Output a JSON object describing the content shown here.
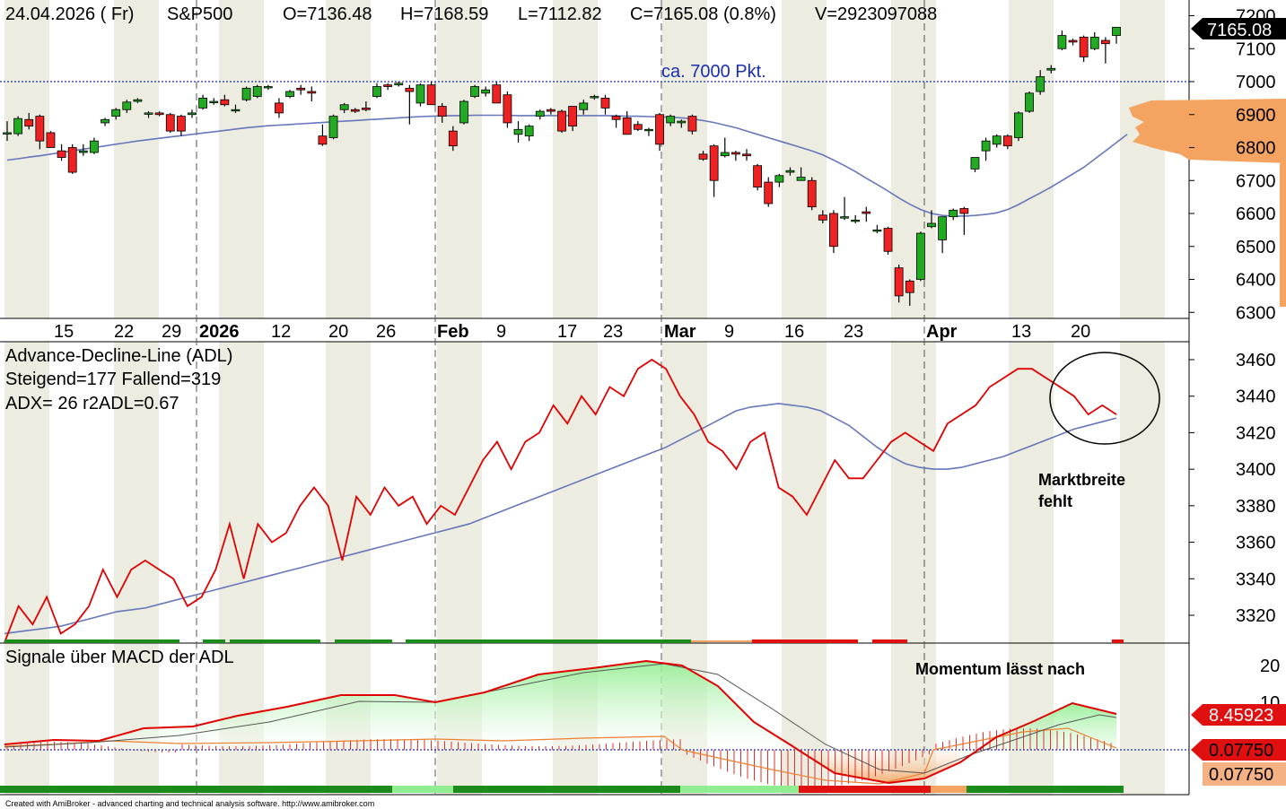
{
  "header": {
    "date": "24.04.2026 ( Fr)",
    "symbol": "S&P500",
    "open": "O=7136.48",
    "high": "H=7168.59",
    "low": "L=7112.82",
    "close": "C=7165.08 (0.8%)",
    "volume": "V=2923097088"
  },
  "price_panel": {
    "annotation": "ca. 7000 Pkt.",
    "last_price": "7165.08",
    "y_ticks": [
      "7200",
      "7100",
      "7000",
      "6900",
      "6800",
      "6700",
      "6600",
      "6500",
      "6400",
      "6300"
    ],
    "x_labels": [
      "15",
      "22",
      "29",
      "2026",
      "12",
      "20",
      "26",
      "Feb",
      "9",
      "17",
      "23",
      "Mar",
      "9",
      "16",
      "23",
      "Apr",
      "13",
      "20"
    ]
  },
  "adl_panel": {
    "title": "Advance-Decline-Line (ADL)",
    "line2": "Steigend=177  Fallend=319",
    "line3": "ADX= 26  r2ADL=0.67",
    "note_line1": "Marktbreite",
    "note_line2": "fehlt",
    "y_ticks": [
      "3460",
      "3440",
      "3420",
      "3400",
      "3380",
      "3360",
      "3340",
      "3320"
    ]
  },
  "macd_panel": {
    "title": "Signale über MACD der ADL",
    "note": "Momentum lässt nach",
    "y_tick_top": "20",
    "y_tick_partial": "10",
    "value1": "8.45923",
    "value2": "0.07750",
    "value3": "0.07750"
  },
  "footer": {
    "credit": "Created with AmiBroker - advanced charting and technical analysis software. http://www.amibroker.com"
  },
  "colors": {
    "up": "#22aa22",
    "down": "#ee2222",
    "adl_line": "#e00000",
    "ma_line": "#6677bb",
    "profile": "#f4a460",
    "signal_green": "#1b8c1b",
    "signal_red": "#e01010"
  },
  "chart_data": {
    "type": "candlestick",
    "series_labels": [
      "S&P500"
    ],
    "y_range": [
      6270,
      7235
    ],
    "candles": [
      {
        "o": 6842,
        "h": 6880,
        "l": 6820,
        "c": 6845
      },
      {
        "o": 6842,
        "h": 6895,
        "l": 6835,
        "c": 6888
      },
      {
        "o": 6885,
        "h": 6905,
        "l": 6855,
        "c": 6865
      },
      {
        "o": 6895,
        "h": 6900,
        "l": 6795,
        "c": 6820
      },
      {
        "o": 6845,
        "h": 6850,
        "l": 6800,
        "c": 6800
      },
      {
        "o": 6790,
        "h": 6810,
        "l": 6760,
        "c": 6770
      },
      {
        "o": 6800,
        "h": 6810,
        "l": 6720,
        "c": 6725
      },
      {
        "o": 6785,
        "h": 6810,
        "l": 6775,
        "c": 6790
      },
      {
        "o": 6785,
        "h": 6830,
        "l": 6780,
        "c": 6820
      },
      {
        "o": 6875,
        "h": 6890,
        "l": 6865,
        "c": 6885
      },
      {
        "o": 6895,
        "h": 6920,
        "l": 6885,
        "c": 6915
      },
      {
        "o": 6915,
        "h": 6945,
        "l": 6905,
        "c": 6938
      },
      {
        "o": 6940,
        "h": 6950,
        "l": 6935,
        "c": 6945
      },
      {
        "o": 6905,
        "h": 6910,
        "l": 6890,
        "c": 6905
      },
      {
        "o": 6905,
        "h": 6910,
        "l": 6895,
        "c": 6900
      },
      {
        "o": 6900,
        "h": 6905,
        "l": 6845,
        "c": 6850
      },
      {
        "o": 6895,
        "h": 6900,
        "l": 6835,
        "c": 6850
      },
      {
        "o": 6900,
        "h": 6915,
        "l": 6890,
        "c": 6905
      },
      {
        "o": 6920,
        "h": 6960,
        "l": 6915,
        "c": 6950
      },
      {
        "o": 6940,
        "h": 6950,
        "l": 6930,
        "c": 6940
      },
      {
        "o": 6945,
        "h": 6960,
        "l": 6925,
        "c": 6930
      },
      {
        "o": 6915,
        "h": 6930,
        "l": 6905,
        "c": 6915
      },
      {
        "o": 6945,
        "h": 6985,
        "l": 6940,
        "c": 6980
      },
      {
        "o": 6955,
        "h": 6990,
        "l": 6950,
        "c": 6985
      },
      {
        "o": 6985,
        "h": 6990,
        "l": 6975,
        "c": 6985
      },
      {
        "o": 6935,
        "h": 6950,
        "l": 6890,
        "c": 6905
      },
      {
        "o": 6955,
        "h": 6975,
        "l": 6950,
        "c": 6970
      },
      {
        "o": 6980,
        "h": 6990,
        "l": 6960,
        "c": 6975
      },
      {
        "o": 6970,
        "h": 6985,
        "l": 6940,
        "c": 6965
      },
      {
        "o": 6835,
        "h": 6870,
        "l": 6805,
        "c": 6810
      },
      {
        "o": 6830,
        "h": 6900,
        "l": 6825,
        "c": 6895
      },
      {
        "o": 6915,
        "h": 6935,
        "l": 6905,
        "c": 6930
      },
      {
        "o": 6915,
        "h": 6920,
        "l": 6905,
        "c": 6910
      },
      {
        "o": 6920,
        "h": 6940,
        "l": 6910,
        "c": 6915
      },
      {
        "o": 6955,
        "h": 6995,
        "l": 6950,
        "c": 6985
      },
      {
        "o": 6990,
        "h": 6995,
        "l": 6975,
        "c": 6985
      },
      {
        "o": 6990,
        "h": 7000,
        "l": 6985,
        "c": 6995
      },
      {
        "o": 6980,
        "h": 6990,
        "l": 6870,
        "c": 6970
      },
      {
        "o": 6935,
        "h": 6995,
        "l": 6925,
        "c": 6990
      },
      {
        "o": 6990,
        "h": 7000,
        "l": 6930,
        "c": 6930
      },
      {
        "o": 6925,
        "h": 6935,
        "l": 6875,
        "c": 6895
      },
      {
        "o": 6850,
        "h": 6865,
        "l": 6790,
        "c": 6805
      },
      {
        "o": 6875,
        "h": 6945,
        "l": 6870,
        "c": 6940
      },
      {
        "o": 6955,
        "h": 6990,
        "l": 6950,
        "c": 6985
      },
      {
        "o": 6965,
        "h": 6985,
        "l": 6955,
        "c": 6975
      },
      {
        "o": 6990,
        "h": 7000,
        "l": 6935,
        "c": 6935
      },
      {
        "o": 6960,
        "h": 6970,
        "l": 6860,
        "c": 6875
      },
      {
        "o": 6840,
        "h": 6880,
        "l": 6815,
        "c": 6855
      },
      {
        "o": 6835,
        "h": 6870,
        "l": 6820,
        "c": 6865
      },
      {
        "o": 6895,
        "h": 6915,
        "l": 6885,
        "c": 6910
      },
      {
        "o": 6915,
        "h": 6920,
        "l": 6900,
        "c": 6910
      },
      {
        "o": 6910,
        "h": 6915,
        "l": 6845,
        "c": 6850
      },
      {
        "o": 6925,
        "h": 6925,
        "l": 6850,
        "c": 6865
      },
      {
        "o": 6915,
        "h": 6945,
        "l": 6900,
        "c": 6935
      },
      {
        "o": 6955,
        "h": 6960,
        "l": 6945,
        "c": 6955
      },
      {
        "o": 6950,
        "h": 6960,
        "l": 6900,
        "c": 6920
      },
      {
        "o": 6895,
        "h": 6900,
        "l": 6860,
        "c": 6885
      },
      {
        "o": 6890,
        "h": 6910,
        "l": 6840,
        "c": 6840
      },
      {
        "o": 6870,
        "h": 6880,
        "l": 6850,
        "c": 6855
      },
      {
        "o": 6855,
        "h": 6860,
        "l": 6835,
        "c": 6855
      },
      {
        "o": 6900,
        "h": 6905,
        "l": 6790,
        "c": 6810
      },
      {
        "o": 6875,
        "h": 6900,
        "l": 6865,
        "c": 6895
      },
      {
        "o": 6875,
        "h": 6885,
        "l": 6860,
        "c": 6880
      },
      {
        "o": 6895,
        "h": 6900,
        "l": 6840,
        "c": 6850
      },
      {
        "o": 6780,
        "h": 6790,
        "l": 6760,
        "c": 6765
      },
      {
        "o": 6805,
        "h": 6810,
        "l": 6650,
        "c": 6700
      },
      {
        "o": 6775,
        "h": 6830,
        "l": 6770,
        "c": 6785
      },
      {
        "o": 6785,
        "h": 6790,
        "l": 6760,
        "c": 6780
      },
      {
        "o": 6780,
        "h": 6795,
        "l": 6760,
        "c": 6775
      },
      {
        "o": 6745,
        "h": 6750,
        "l": 6670,
        "c": 6680
      },
      {
        "o": 6695,
        "h": 6710,
        "l": 6620,
        "c": 6630
      },
      {
        "o": 6695,
        "h": 6720,
        "l": 6680,
        "c": 6715
      },
      {
        "o": 6725,
        "h": 6740,
        "l": 6715,
        "c": 6730
      },
      {
        "o": 6700,
        "h": 6740,
        "l": 6700,
        "c": 6710
      },
      {
        "o": 6700,
        "h": 6710,
        "l": 6610,
        "c": 6620
      },
      {
        "o": 6595,
        "h": 6610,
        "l": 6570,
        "c": 6580
      },
      {
        "o": 6600,
        "h": 6610,
        "l": 6480,
        "c": 6500
      },
      {
        "o": 6590,
        "h": 6650,
        "l": 6580,
        "c": 6590
      },
      {
        "o": 6580,
        "h": 6595,
        "l": 6570,
        "c": 6580
      },
      {
        "o": 6605,
        "h": 6620,
        "l": 6575,
        "c": 6600
      },
      {
        "o": 6550,
        "h": 6565,
        "l": 6540,
        "c": 6550
      },
      {
        "o": 6555,
        "h": 6560,
        "l": 6475,
        "c": 6485
      },
      {
        "o": 6435,
        "h": 6445,
        "l": 6330,
        "c": 6350
      },
      {
        "o": 6395,
        "h": 6400,
        "l": 6320,
        "c": 6360
      },
      {
        "o": 6400,
        "h": 6545,
        "l": 6395,
        "c": 6540
      },
      {
        "o": 6560,
        "h": 6610,
        "l": 6555,
        "c": 6570
      },
      {
        "o": 6520,
        "h": 6590,
        "l": 6480,
        "c": 6590
      },
      {
        "o": 6590,
        "h": 6615,
        "l": 6580,
        "c": 6610
      },
      {
        "o": 6615,
        "h": 6620,
        "l": 6535,
        "c": 6600
      },
      {
        "o": 6735,
        "h": 6765,
        "l": 6725,
        "c": 6770
      },
      {
        "o": 6790,
        "h": 6830,
        "l": 6760,
        "c": 6820
      },
      {
        "o": 6810,
        "h": 6840,
        "l": 6800,
        "c": 6835
      },
      {
        "o": 6835,
        "h": 6840,
        "l": 6795,
        "c": 6805
      },
      {
        "o": 6830,
        "h": 6910,
        "l": 6820,
        "c": 6905
      },
      {
        "o": 6910,
        "h": 6970,
        "l": 6905,
        "c": 6965
      },
      {
        "o": 6970,
        "h": 7035,
        "l": 6960,
        "c": 7015
      },
      {
        "o": 7035,
        "h": 7050,
        "l": 7025,
        "c": 7040
      },
      {
        "o": 7100,
        "h": 7155,
        "l": 7095,
        "c": 7140
      },
      {
        "o": 7125,
        "h": 7130,
        "l": 7110,
        "c": 7120
      },
      {
        "o": 7135,
        "h": 7140,
        "l": 7060,
        "c": 7075
      },
      {
        "o": 7100,
        "h": 7150,
        "l": 7095,
        "c": 7135
      },
      {
        "o": 7125,
        "h": 7135,
        "l": 7055,
        "c": 7115
      },
      {
        "o": 7140,
        "h": 7165,
        "l": 7115,
        "c": 7165
      }
    ],
    "moving_average": [
      6762,
      6766,
      6771,
      6775,
      6780,
      6785,
      6790,
      6795,
      6800,
      6805,
      6810,
      6815,
      6820,
      6824,
      6828,
      6832,
      6836,
      6840,
      6844,
      6848,
      6852,
      6856,
      6860,
      6863,
      6866,
      6868,
      6870,
      6872,
      6874,
      6876,
      6878,
      6880,
      6882,
      6884,
      6886,
      6888,
      6890,
      6892,
      6894,
      6895,
      6896,
      6897,
      6897,
      6898,
      6898,
      6898,
      6898,
      6897,
      6897,
      6897,
      6897,
      6897,
      6897,
      6897,
      6897,
      6897,
      6896,
      6895,
      6895,
      6894,
      6893,
      6892,
      6890,
      6887,
      6882,
      6876,
      6868,
      6860,
      6850,
      6840,
      6830,
      6820,
      6810,
      6800,
      6790,
      6778,
      6762,
      6745,
      6727,
      6707,
      6688,
      6668,
      6647,
      6628,
      6612,
      6600,
      6594,
      6592,
      6592,
      6594,
      6597,
      6602,
      6612,
      6627,
      6645,
      6662,
      6680,
      6700,
      6720,
      6740,
      6765,
      6790,
      6815,
      6840
    ],
    "reference_line": 7000,
    "adl": [
      3305,
      3325,
      3315,
      3330,
      3310,
      3315,
      3325,
      3345,
      3330,
      3345,
      3350,
      3345,
      3340,
      3325,
      3330,
      3345,
      3370,
      3340,
      3370,
      3360,
      3365,
      3380,
      3390,
      3380,
      3350,
      3385,
      3375,
      3390,
      3380,
      3385,
      3370,
      3380,
      3375,
      3390,
      3405,
      3415,
      3400,
      3415,
      3420,
      3435,
      3425,
      3440,
      3430,
      3445,
      3440,
      3455,
      3460,
      3455,
      3440,
      3430,
      3415,
      3410,
      3400,
      3415,
      3420,
      3390,
      3385,
      3375,
      3390,
      3405,
      3395,
      3395,
      3405,
      3415,
      3420,
      3415,
      3410,
      3425,
      3430,
      3435,
      3445,
      3450,
      3455,
      3455,
      3450,
      3445,
      3440,
      3430,
      3435,
      3430
    ],
    "adl_ma": [
      3310,
      3311,
      3312,
      3313,
      3314,
      3316,
      3318,
      3320,
      3322,
      3323,
      3324,
      3326,
      3328,
      3330,
      3332,
      3334,
      3336,
      3338,
      3340,
      3342,
      3344,
      3346,
      3348,
      3350,
      3352,
      3354,
      3356,
      3358,
      3360,
      3362,
      3364,
      3366,
      3368,
      3370,
      3373,
      3376,
      3379,
      3382,
      3385,
      3388,
      3391,
      3394,
      3397,
      3400,
      3403,
      3406,
      3409,
      3412,
      3416,
      3420,
      3424,
      3428,
      3432,
      3434,
      3435,
      3436,
      3435,
      3434,
      3432,
      3428,
      3424,
      3418,
      3412,
      3407,
      3403,
      3401,
      3400,
      3400,
      3401,
      3403,
      3405,
      3407,
      3410,
      3413,
      3416,
      3419,
      3422,
      3424,
      3426,
      3428
    ]
  }
}
